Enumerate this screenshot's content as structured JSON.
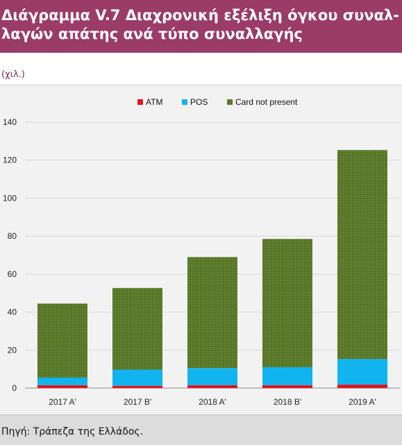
{
  "header": {
    "title_line1": "Διάγραμμα V.7 Διαχρονική εξέλιξη όγκου συναλ-",
    "title_line2": "λαγών απάτης ανά τύπο συναλλαγής",
    "unit": "(χιλ.)"
  },
  "footer": {
    "source": "Πηγή: Τράπεζα της Ελλάδος."
  },
  "colors": {
    "title_bg": "#9b3b68",
    "ATM": "#e0141e",
    "POS": "#11b4ee",
    "Card not present": "#5c7a2b"
  },
  "chart_data": {
    "type": "bar",
    "stacked": true,
    "categories": [
      "2017 A'",
      "2017 B'",
      "2018 A'",
      "2018 B'",
      "2019 A'"
    ],
    "series": [
      {
        "name": "ATM",
        "values": [
          1.5,
          1.2,
          1.5,
          1.5,
          1.8
        ]
      },
      {
        "name": "POS",
        "values": [
          4.0,
          8.5,
          9.0,
          9.5,
          13.5
        ]
      },
      {
        "name": "Card not present",
        "values": [
          39.0,
          43.0,
          58.5,
          67.5,
          110.0
        ]
      }
    ],
    "yticks": [
      0,
      20,
      40,
      60,
      80,
      100,
      120,
      140
    ],
    "ylim": [
      0,
      140
    ],
    "legend_position": "top",
    "grid": true
  }
}
